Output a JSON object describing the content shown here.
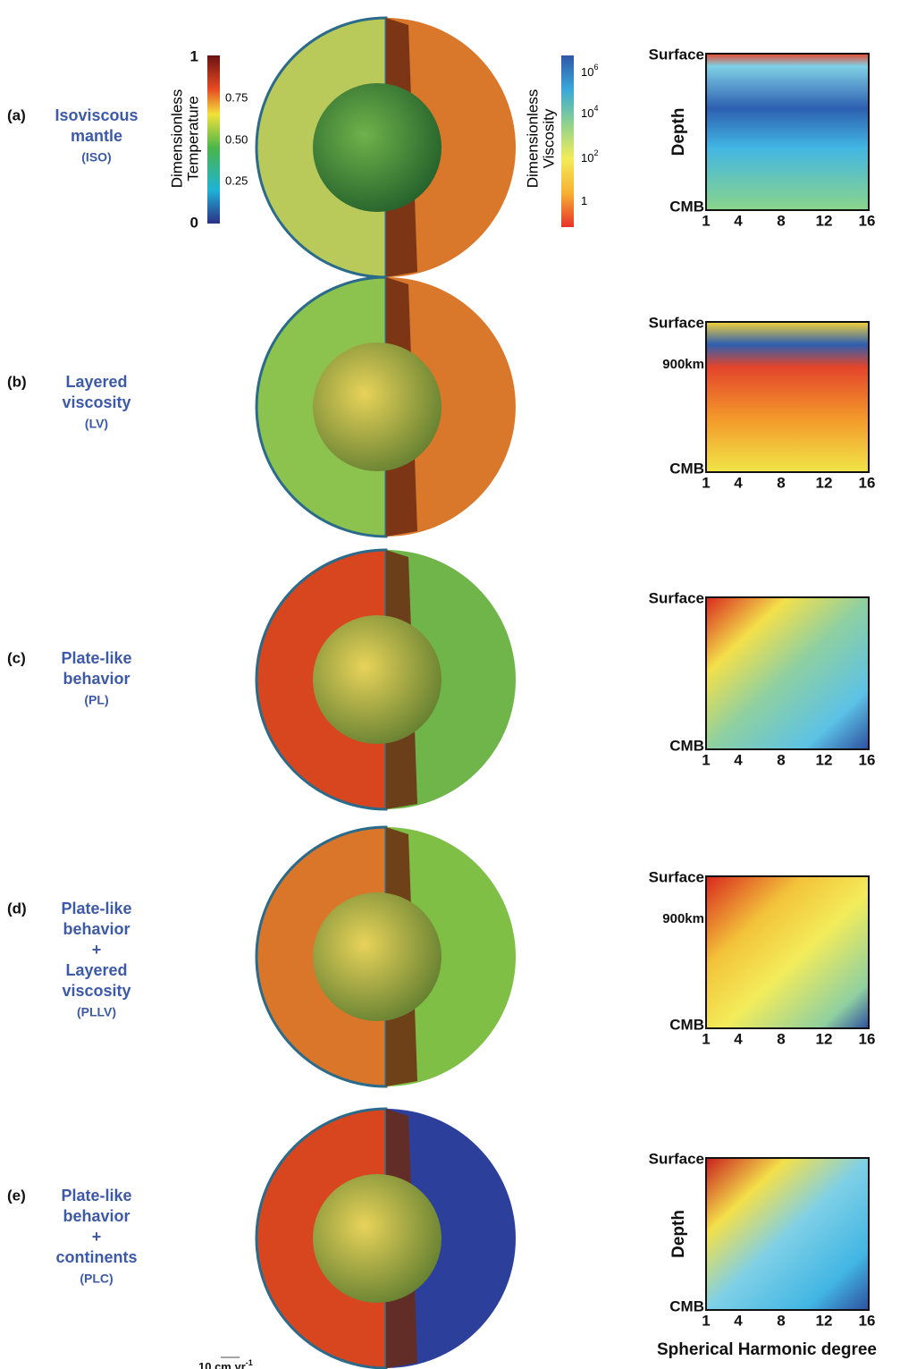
{
  "colorbars": {
    "temperature": {
      "title": [
        "Dimensionless",
        "Temperature"
      ],
      "ticks": [
        "1",
        "0.75",
        "0.50",
        "0.25",
        "0"
      ]
    },
    "viscosity": {
      "title": [
        "Dimensionless",
        "Viscosity"
      ],
      "ticks": [
        {
          "base": "10",
          "exp": "6"
        },
        {
          "base": "10",
          "exp": "4"
        },
        {
          "base": "10",
          "exp": "2"
        },
        {
          "base": "1"
        }
      ]
    }
  },
  "panels": [
    {
      "letter": "(a)",
      "name": [
        "Isoviscous",
        "mantle"
      ],
      "abbr": "(ISO)",
      "spectrum": {
        "y_top": "Surface",
        "y_label": "Depth",
        "y_bottom": "CMB",
        "x_ticks": [
          "1",
          "4",
          "8",
          "12",
          "16"
        ]
      }
    },
    {
      "letter": "(b)",
      "name": [
        "Layered",
        "viscosity"
      ],
      "abbr": "(LV)",
      "spectrum": {
        "y_top": "Surface",
        "y_mid": "900km",
        "y_bottom": "CMB",
        "x_ticks": [
          "1",
          "4",
          "8",
          "12",
          "16"
        ]
      }
    },
    {
      "letter": "(c)",
      "name": [
        "Plate-like",
        "behavior"
      ],
      "abbr": "(PL)",
      "spectrum": {
        "y_top": "Surface",
        "y_bottom": "CMB",
        "x_ticks": [
          "1",
          "4",
          "8",
          "12",
          "16"
        ]
      }
    },
    {
      "letter": "(d)",
      "name": [
        "Plate-like",
        "behavior",
        "+",
        "Layered",
        "viscosity"
      ],
      "abbr": "(PLLV)",
      "spectrum": {
        "y_top": "Surface",
        "y_mid": "900km",
        "y_bottom": "CMB",
        "x_ticks": [
          "1",
          "4",
          "8",
          "12",
          "16"
        ]
      }
    },
    {
      "letter": "(e)",
      "name": [
        "Plate-like",
        "behavior",
        "+",
        "continents"
      ],
      "abbr": "(PLC)",
      "spectrum": {
        "y_top": "Surface",
        "y_label": "Depth",
        "y_bottom": "CMB",
        "x_ticks": [
          "1",
          "4",
          "8",
          "12",
          "16"
        ],
        "x_label": "Spherical Harmonic degree"
      }
    }
  ],
  "scale_arrow": {
    "label": "10 cm.yr",
    "exp": "-1"
  }
}
